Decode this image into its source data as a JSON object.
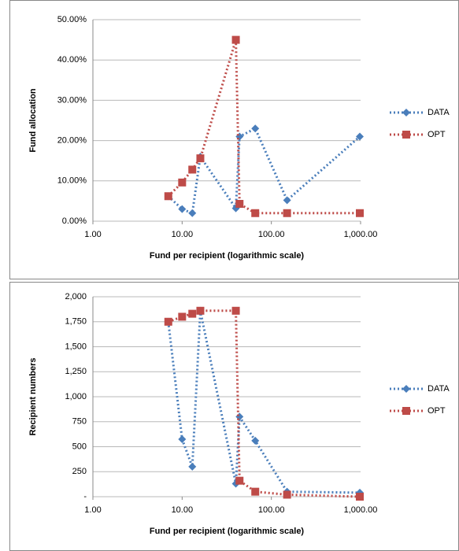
{
  "chart_data": [
    {
      "type": "line",
      "xlog": true,
      "grid": true,
      "legend": "right",
      "xlabel": "Fund per recipient  (logarithmic scale)",
      "ylabel": "Fund allocation",
      "xlim": [
        1,
        1000
      ],
      "xticks": [
        {
          "value": 1,
          "label": "1.00"
        },
        {
          "value": 10,
          "label": "10.00"
        },
        {
          "value": 100,
          "label": "100.00"
        },
        {
          "value": 1000,
          "label": "1,000.00"
        }
      ],
      "ylim": [
        0,
        50
      ],
      "yticks": [
        {
          "value": 0,
          "label": "0.00%"
        },
        {
          "value": 10,
          "label": "10.00%"
        },
        {
          "value": 20,
          "label": "20.00%"
        },
        {
          "value": 30,
          "label": "30.00%"
        },
        {
          "value": 40,
          "label": "40.00%"
        },
        {
          "value": 50,
          "label": "50.00%"
        }
      ],
      "x": [
        7,
        10,
        13,
        16,
        40,
        44,
        66,
        150,
        980
      ],
      "series": [
        {
          "name": "DATA",
          "color": "#4a7ebb",
          "marker": "diamond",
          "values": [
            6.2,
            3.0,
            2.0,
            16,
            3.2,
            21,
            23,
            5.2,
            21
          ]
        },
        {
          "name": "OPT",
          "color": "#be4b48",
          "marker": "square",
          "values": [
            6.2,
            9.6,
            12.8,
            15.6,
            45,
            4.3,
            2.0,
            2.0,
            2.0
          ]
        }
      ]
    },
    {
      "type": "line",
      "xlog": true,
      "grid": true,
      "legend": "right",
      "xlabel": "Fund per recipient (logarithmic scale)",
      "ylabel": "Recipient numbers",
      "xlim": [
        1,
        1000
      ],
      "xticks": [
        {
          "value": 1,
          "label": "1.00"
        },
        {
          "value": 10,
          "label": "10.00"
        },
        {
          "value": 100,
          "label": "100.00"
        },
        {
          "value": 1000,
          "label": "1,000.00"
        }
      ],
      "ylim": [
        0,
        2000
      ],
      "yticks": [
        {
          "value": 0,
          "label": "-"
        },
        250,
        500,
        750,
        {
          "value": 1000,
          "label": "1,000"
        },
        {
          "value": 1250,
          "label": "1,250"
        },
        {
          "value": 1500,
          "label": "1,500"
        },
        {
          "value": 1750,
          "label": "1,750"
        },
        {
          "value": 2000,
          "label": "2,000"
        }
      ],
      "x": [
        7,
        10,
        13,
        16,
        40,
        44,
        66,
        150,
        980
      ],
      "series": [
        {
          "name": "DATA",
          "color": "#4a7ebb",
          "marker": "diamond",
          "values": [
            1750,
            575,
            300,
            1860,
            130,
            800,
            560,
            50,
            40
          ]
        },
        {
          "name": "OPT",
          "color": "#be4b48",
          "marker": "square",
          "values": [
            1750,
            1800,
            1830,
            1860,
            1860,
            160,
            50,
            20,
            0
          ]
        }
      ]
    }
  ]
}
